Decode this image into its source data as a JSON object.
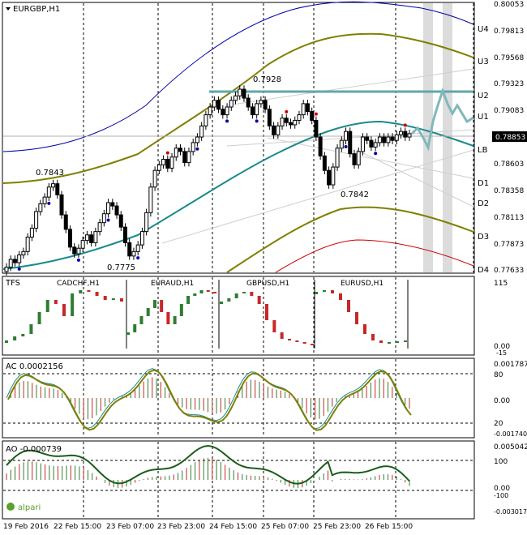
{
  "main": {
    "title": "EURGBP,H1",
    "current_price": "0.78853",
    "price_ticks": [
      "0.80053",
      "0.79813",
      "0.79568",
      "0.79323",
      "0.79083",
      "0.78603",
      "0.78358",
      "0.78113",
      "0.77873",
      "0.77633"
    ],
    "level_labels": [
      "U4",
      "U3",
      "U2",
      "U1",
      "LB",
      "D1",
      "D2",
      "D3",
      "D4"
    ],
    "annotations": [
      "0.7843",
      "0.7775",
      "0.7928",
      "0.7842"
    ],
    "candles": [
      0.7768,
      0.7775,
      0.7772,
      0.7779,
      0.7782,
      0.7795,
      0.7803,
      0.7818,
      0.7825,
      0.7831,
      0.784,
      0.7843,
      0.7833,
      0.7815,
      0.7802,
      0.7786,
      0.778,
      0.7785,
      0.7792,
      0.7797,
      0.779,
      0.78,
      0.7808,
      0.7816,
      0.7826,
      0.7823,
      0.7815,
      0.7804,
      0.779,
      0.7778,
      0.7782,
      0.7788,
      0.78,
      0.7817,
      0.784,
      0.7855,
      0.786,
      0.7865,
      0.7857,
      0.7867,
      0.7875,
      0.7872,
      0.7862,
      0.7872,
      0.788,
      0.7885,
      0.7895,
      0.7905,
      0.7912,
      0.7918,
      0.791,
      0.7905,
      0.7912,
      0.7918,
      0.7922,
      0.7928,
      0.792,
      0.7912,
      0.7905,
      0.7915,
      0.7918,
      0.791,
      0.7895,
      0.7887,
      0.7895,
      0.7902,
      0.7898,
      0.7896,
      0.79,
      0.7905,
      0.7915,
      0.7908,
      0.79,
      0.7885,
      0.7868,
      0.7855,
      0.7842,
      0.7858,
      0.7875,
      0.7882,
      0.789,
      0.787,
      0.786,
      0.7872,
      0.7885,
      0.7882,
      0.7876,
      0.788,
      0.7885,
      0.788,
      0.7885,
      0.7882,
      0.7887,
      0.789,
      0.7885,
      0.7888
    ]
  },
  "tfs_panel": {
    "label": "TFS",
    "pairs": [
      "CADCHF,H1",
      "EURAUD,H1",
      "GBPUSD,H1",
      "EURUSD,H1"
    ],
    "scale_top": "115",
    "scale_bottom": "0.00",
    "scale_low": "-15"
  },
  "ac_panel": {
    "label": "AC 0.0002156",
    "scale_top": "0.001787",
    "scale_labels": [
      "80",
      "0.00",
      "20"
    ],
    "scale_bottom": "-0.001740"
  },
  "ao_panel": {
    "label": "AO -0.000739",
    "scale_top": "0.005042",
    "scale_labels": [
      "100",
      "0.00",
      "-100"
    ],
    "scale_bottom": "-0.003017"
  },
  "time_axis": [
    "19 Feb 2016",
    "22 Feb 15:00",
    "23 Feb 07:00",
    "23 Feb 23:00",
    "24 Feb 15:00",
    "25 Feb 07:00",
    "25 Feb 23:00",
    "26 Feb 15:00"
  ],
  "brand": "alpari",
  "colors": {
    "up_candle": "#2e7d32",
    "down_candle": "#c62828",
    "upper_band": "#0000aa",
    "olive_band": "#808000",
    "teal_band": "#1a8a8a",
    "red_band": "#cc0000",
    "level_line": "#5fa8a8"
  }
}
